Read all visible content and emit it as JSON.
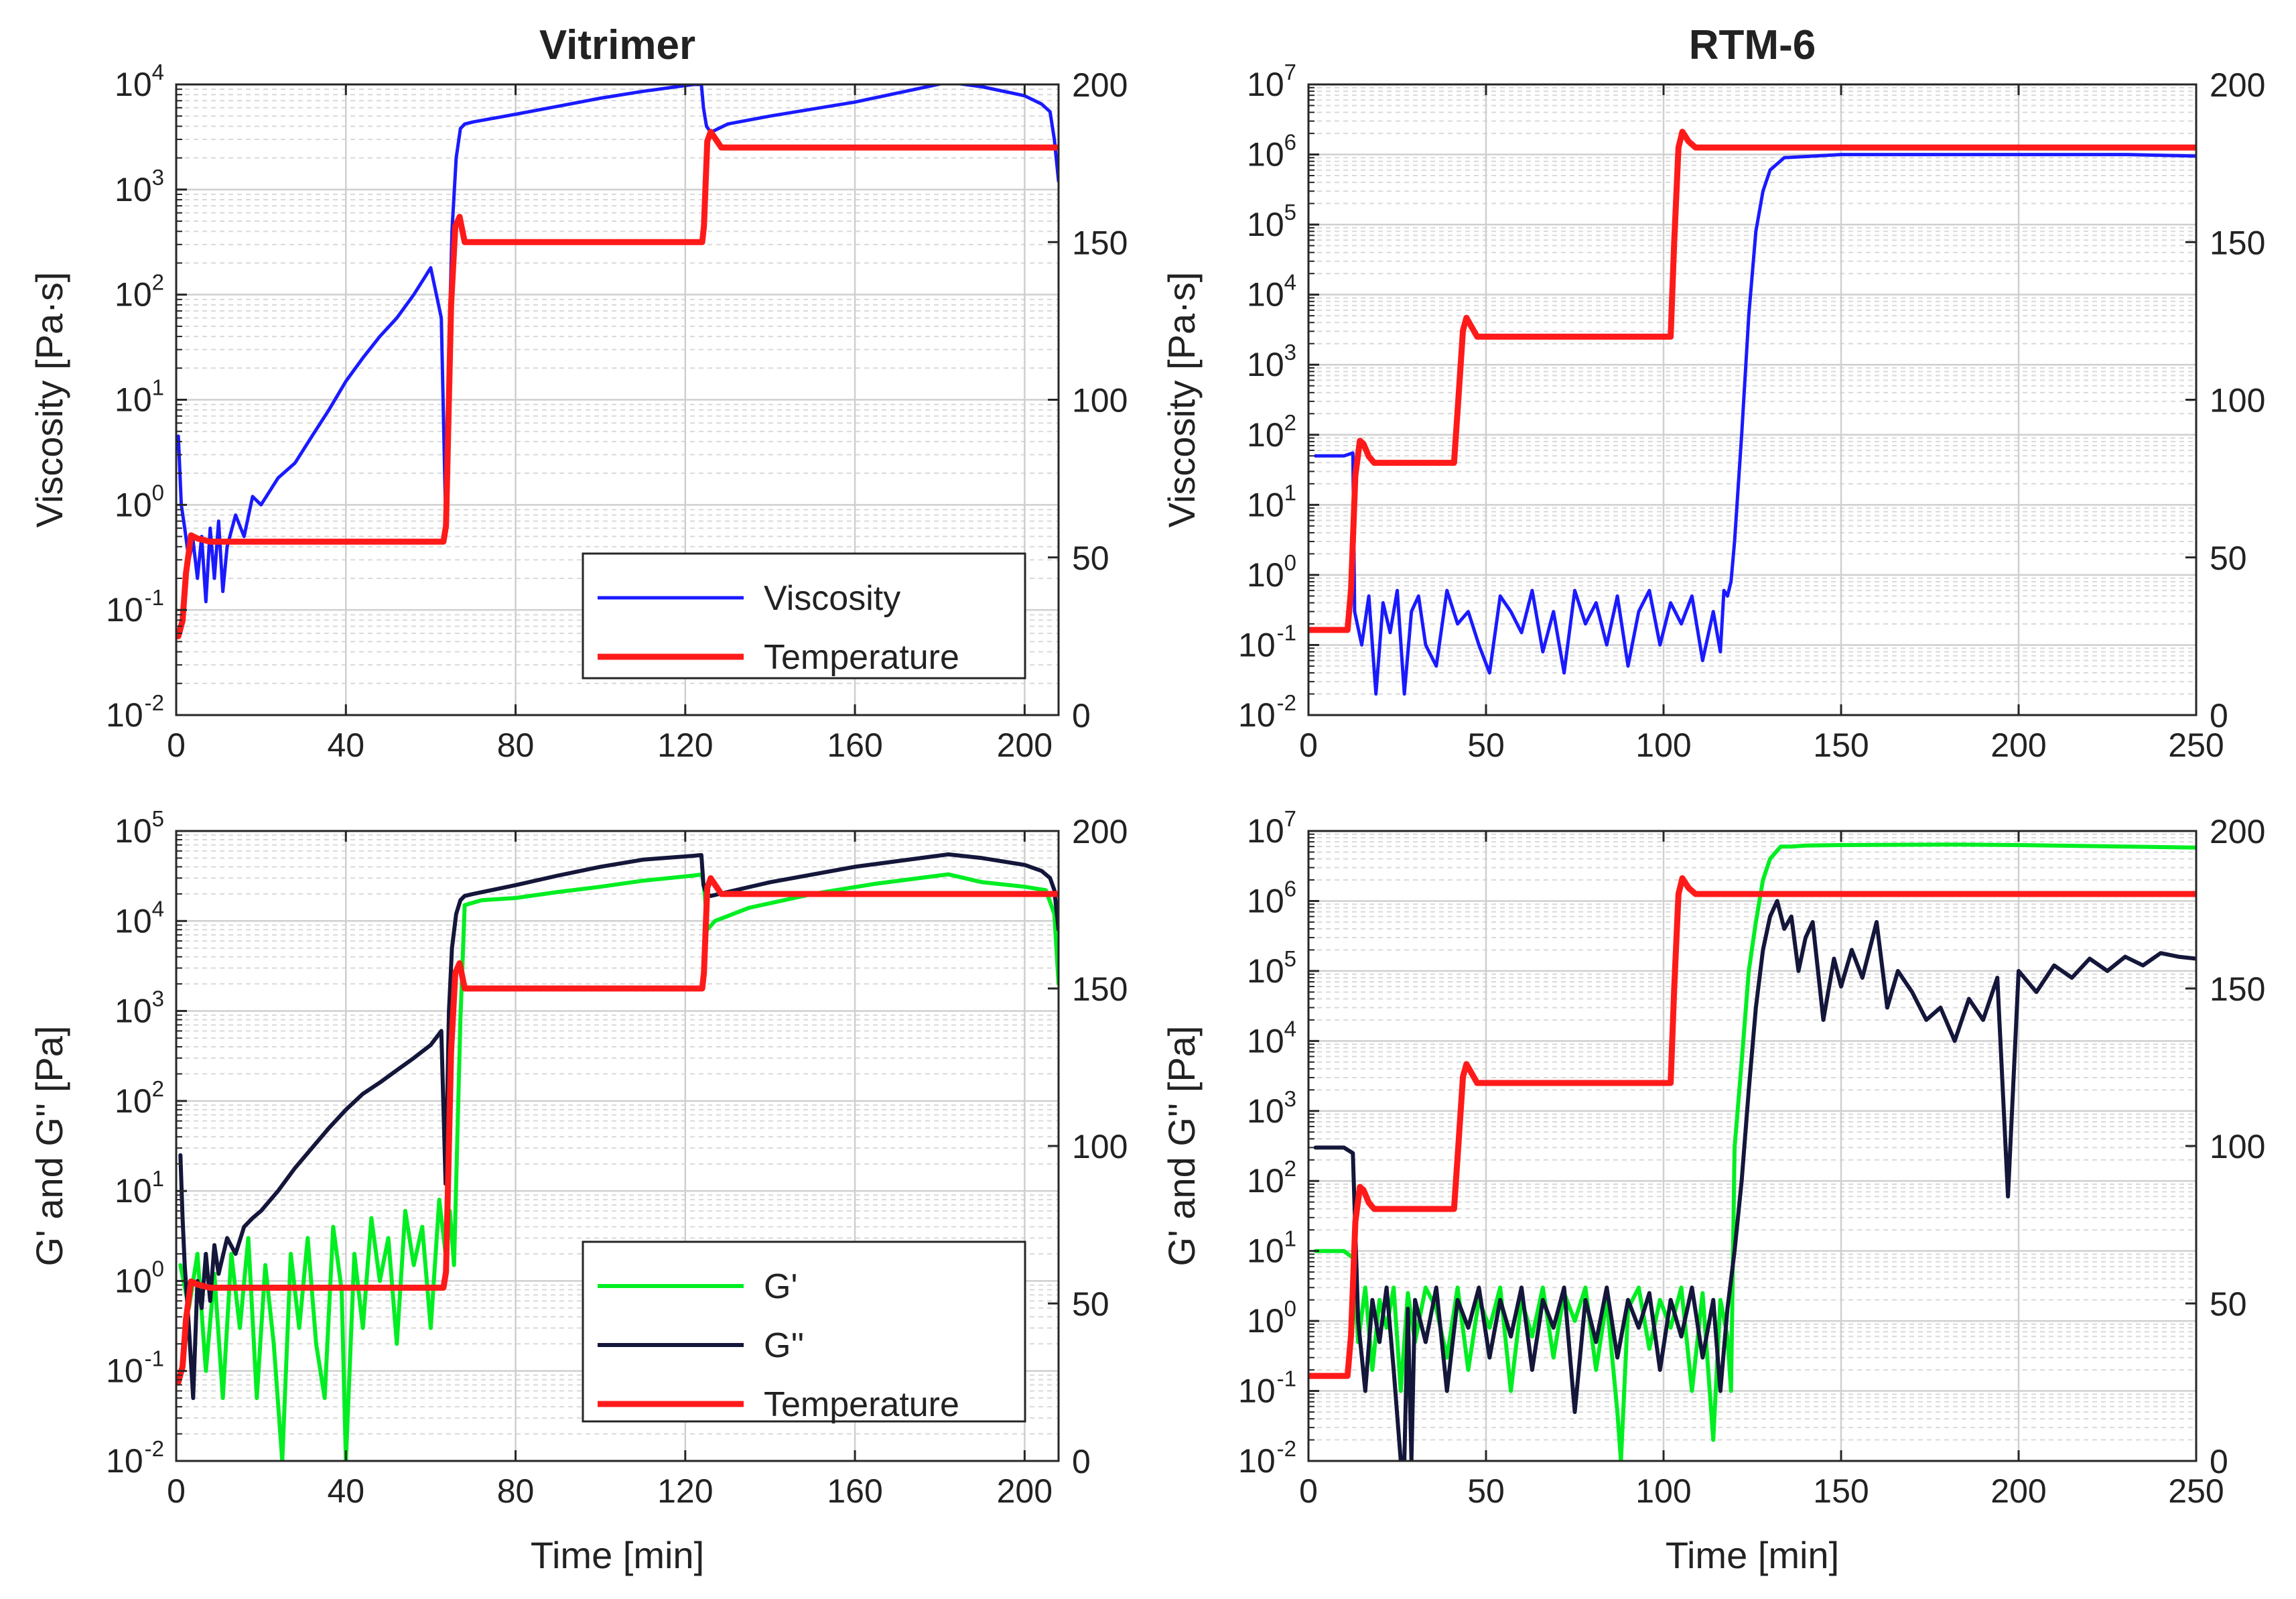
{
  "colors": {
    "viscosity": "#1a1aff",
    "temperature": "#ff1a1a",
    "g_prime": "#00ee22",
    "g_double_prime": "#14163a",
    "grid": "#d9d9d9",
    "axis": "#262626"
  },
  "chart_data": [
    {
      "id": "vit_visc",
      "type": "line",
      "title": "Vitrimer",
      "xlabel": "",
      "ylabel": "Viscosity [Pa·s]",
      "xlim": [
        0,
        208
      ],
      "xticks": [
        0,
        40,
        80,
        120,
        160,
        200
      ],
      "y_scale": "log",
      "ylim_exp": [
        -2,
        4
      ],
      "y2lim": [
        0,
        200
      ],
      "y2ticks": [
        0,
        50,
        100,
        150,
        200
      ],
      "legend": {
        "position": "bottom-right",
        "entries": [
          "Viscosity",
          "Temperature"
        ]
      },
      "series": [
        {
          "name": "Viscosity",
          "key": "viscosity",
          "axis": "left-log",
          "width": 5,
          "x": [
            0.5,
            1.2,
            2,
            3,
            4,
            5,
            6,
            7,
            8,
            9,
            10,
            11,
            12,
            14,
            16,
            18,
            20,
            24,
            28,
            32,
            36,
            40,
            44,
            48,
            52,
            56,
            60,
            62.5,
            63.5,
            64.3,
            65,
            66,
            67,
            68,
            70,
            80,
            90,
            100,
            110,
            122,
            123.8,
            124.3,
            125,
            126,
            130,
            140,
            160,
            182,
            190,
            200,
            204,
            206,
            207,
            208
          ],
          "y": [
            4.5,
            1.0,
            0.6,
            0.3,
            0.45,
            0.2,
            0.5,
            0.12,
            0.6,
            0.2,
            0.7,
            0.15,
            0.4,
            0.8,
            0.5,
            1.2,
            1.0,
            1.8,
            2.5,
            4.5,
            8,
            15,
            25,
            40,
            60,
            100,
            180,
            60,
            0.8,
            30,
            400,
            2000,
            3800,
            4200,
            4400,
            5200,
            6200,
            7400,
            8600,
            10000,
            10000,
            6000,
            4000,
            3500,
            4200,
            5000,
            6800,
            10500,
            9500,
            7800,
            6500,
            5500,
            3000,
            1200
          ]
        },
        {
          "name": "Temperature",
          "key": "temperature",
          "axis": "right",
          "width": 9,
          "x": [
            0.5,
            1.5,
            2.3,
            3.5,
            5,
            8,
            12,
            63,
            63.6,
            64.8,
            65.8,
            66.8,
            68,
            72,
            124,
            124.4,
            125.2,
            126,
            127,
            128.5,
            132,
            208
          ],
          "y": [
            25,
            30,
            45,
            57,
            56,
            55,
            55,
            55,
            60,
            130,
            155,
            158,
            150,
            150,
            150,
            155,
            182,
            185,
            183,
            180,
            180,
            180
          ]
        }
      ]
    },
    {
      "id": "rtm_visc",
      "type": "line",
      "title": "RTM-6",
      "xlabel": "",
      "ylabel": "Viscosity [Pa·s]",
      "xlim": [
        0,
        250
      ],
      "xticks": [
        0,
        50,
        100,
        150,
        200,
        250
      ],
      "y_scale": "log",
      "ylim_exp": [
        -2,
        7
      ],
      "y2lim": [
        0,
        200
      ],
      "y2ticks": [
        0,
        50,
        100,
        150,
        200
      ],
      "series": [
        {
          "name": "Viscosity",
          "key": "viscosity",
          "axis": "left-log",
          "width": 5,
          "x": [
            2,
            10,
            12.5,
            13,
            15,
            17,
            19,
            21,
            23,
            25,
            27,
            29,
            31,
            33,
            36,
            39,
            42,
            45,
            48,
            51,
            54,
            57,
            60,
            63,
            66,
            69,
            72,
            75,
            78,
            81,
            84,
            87,
            90,
            93,
            96,
            99,
            102,
            105,
            108,
            111,
            114,
            116,
            117,
            118,
            119,
            120,
            122,
            124,
            126,
            128,
            130,
            134,
            150,
            200,
            230,
            250
          ],
          "y": [
            50,
            50,
            55,
            0.3,
            0.1,
            0.5,
            0.02,
            0.4,
            0.15,
            0.6,
            0.02,
            0.3,
            0.5,
            0.1,
            0.05,
            0.6,
            0.2,
            0.3,
            0.1,
            0.04,
            0.5,
            0.3,
            0.15,
            0.6,
            0.08,
            0.3,
            0.04,
            0.6,
            0.2,
            0.4,
            0.1,
            0.5,
            0.05,
            0.3,
            0.6,
            0.1,
            0.4,
            0.2,
            0.5,
            0.06,
            0.3,
            0.08,
            0.6,
            0.5,
            0.8,
            3,
            100,
            5000,
            80000,
            300000,
            600000,
            900000,
            1000000,
            1000000,
            1000000,
            950000
          ]
        },
        {
          "name": "Temperature",
          "key": "temperature",
          "axis": "right",
          "width": 9,
          "x": [
            0,
            11,
            12,
            13.2,
            14.5,
            15.5,
            17,
            18.5,
            20,
            41,
            42.2,
            43.5,
            44.5,
            46,
            47.5,
            50,
            102,
            103,
            104.2,
            105.3,
            107,
            109,
            112,
            250
          ],
          "y": [
            27,
            27,
            40,
            76,
            87,
            86,
            82,
            80,
            80,
            80,
            100,
            122,
            126,
            123,
            120,
            120,
            120,
            150,
            180,
            185,
            182,
            180,
            180,
            180
          ]
        }
      ]
    },
    {
      "id": "vit_mod",
      "type": "line",
      "title": "",
      "xlabel": "Time [min]",
      "ylabel": "G' and G'' [Pa]",
      "xlim": [
        0,
        208
      ],
      "xticks": [
        0,
        40,
        80,
        120,
        160,
        200
      ],
      "y_scale": "log",
      "ylim_exp": [
        -2,
        5
      ],
      "y2lim": [
        0,
        200
      ],
      "y2ticks": [
        0,
        50,
        100,
        150,
        200
      ],
      "legend": {
        "position": "bottom-right",
        "entries": [
          "G'",
          "G''",
          "Temperature"
        ]
      },
      "series": [
        {
          "name": "G'",
          "key": "g_prime",
          "axis": "left-log",
          "width": 6,
          "x": [
            1,
            3,
            5,
            7,
            9,
            11,
            13,
            15,
            17,
            19,
            21,
            23,
            25,
            27,
            29,
            31,
            33,
            35,
            37,
            39,
            40,
            42,
            44,
            46,
            48,
            50,
            52,
            54,
            56,
            58,
            60,
            62,
            63.5,
            64.5,
            65.5,
            67,
            68,
            72,
            80,
            90,
            100,
            110,
            122,
            124,
            124.6,
            125.2,
            127,
            135,
            150,
            165,
            182,
            190,
            200,
            205,
            207,
            208
          ],
          "y": [
            1.5,
            0.5,
            2.0,
            0.1,
            1.2,
            0.05,
            2.0,
            0.3,
            3.0,
            0.05,
            1.5,
            0.2,
            0.01,
            2.0,
            0.3,
            3.0,
            0.2,
            0.05,
            4.0,
            0.8,
            0.01,
            2.0,
            0.3,
            5.0,
            1.0,
            3.0,
            0.2,
            6.0,
            1.5,
            4.0,
            0.3,
            8.0,
            2.0,
            6.0,
            1.5,
            800,
            15000,
            17000,
            18000,
            21000,
            24000,
            28000,
            32000,
            33000,
            20000,
            8000,
            10000,
            14000,
            20000,
            26000,
            33000,
            27000,
            24000,
            22000,
            12000,
            2000
          ]
        },
        {
          "name": "G''",
          "key": "g_double_prime",
          "axis": "left-log",
          "width": 6,
          "x": [
            1,
            1.5,
            2,
            3,
            4,
            5,
            6,
            7,
            8,
            9,
            10,
            12,
            14,
            16,
            18,
            20,
            24,
            28,
            32,
            36,
            40,
            44,
            48,
            52,
            56,
            60,
            62.5,
            63.5,
            64.3,
            65,
            66,
            67,
            68,
            70,
            80,
            90,
            100,
            110,
            122,
            123.8,
            124.3,
            125,
            126,
            130,
            140,
            160,
            182,
            190,
            200,
            204,
            206,
            207,
            208
          ],
          "y": [
            25,
            5,
            1.5,
            0.3,
            0.05,
            1.0,
            0.5,
            2.0,
            0.6,
            2.5,
            1.2,
            3.0,
            2.0,
            4.0,
            5.0,
            6.0,
            10,
            18,
            30,
            50,
            80,
            120,
            160,
            220,
            300,
            420,
            600,
            12,
            1000,
            5000,
            12000,
            17000,
            19000,
            20000,
            25000,
            32000,
            40000,
            48000,
            53000,
            54000,
            25000,
            20000,
            19000,
            21000,
            27000,
            40000,
            55000,
            50000,
            42000,
            36000,
            30000,
            22000,
            8000
          ]
        },
        {
          "name": "Temperature",
          "key": "temperature",
          "axis": "right",
          "width": 9,
          "x": [
            0.5,
            1.5,
            2.3,
            3.5,
            5,
            8,
            12,
            63,
            63.6,
            64.8,
            65.8,
            66.8,
            68,
            72,
            124,
            124.4,
            125.2,
            126,
            127,
            128.5,
            132,
            208
          ],
          "y": [
            25,
            30,
            45,
            57,
            56,
            55,
            55,
            55,
            60,
            130,
            155,
            158,
            150,
            150,
            150,
            155,
            182,
            185,
            183,
            180,
            180,
            180
          ]
        }
      ]
    },
    {
      "id": "rtm_mod",
      "type": "line",
      "title": "",
      "xlabel": "Time [min]",
      "ylabel": "G' and G'' [Pa]",
      "xlim": [
        0,
        250
      ],
      "xticks": [
        0,
        50,
        100,
        150,
        200,
        250
      ],
      "y_scale": "log",
      "ylim_exp": [
        -2,
        7
      ],
      "y2lim": [
        0,
        200
      ],
      "y2ticks": [
        0,
        50,
        100,
        150,
        200
      ],
      "series": [
        {
          "name": "G'",
          "key": "g_prime",
          "axis": "left-log",
          "width": 6,
          "x": [
            2,
            10,
            12.5,
            14,
            16,
            18,
            20,
            22,
            24,
            26,
            28,
            30,
            33,
            36,
            39,
            42,
            45,
            48,
            51,
            54,
            57,
            60,
            63,
            66,
            69,
            72,
            75,
            78,
            81,
            84,
            87,
            88,
            90,
            93,
            96,
            99,
            102,
            105,
            108,
            111,
            114,
            116,
            118,
            119,
            120,
            122,
            124,
            126,
            128,
            130,
            133,
            136,
            140,
            150,
            180,
            200,
            230,
            250
          ],
          "y": [
            10,
            10,
            8,
            0.5,
            3.0,
            0.2,
            2.0,
            0.8,
            3.0,
            0.1,
            2.5,
            0.5,
            3.0,
            1.5,
            0.3,
            3.0,
            0.2,
            2.0,
            0.8,
            3.0,
            0.1,
            2.0,
            0.6,
            3.0,
            0.3,
            2.5,
            1.0,
            3.0,
            0.2,
            2.0,
            0.05,
            0.01,
            1.5,
            3.0,
            0.4,
            2.0,
            0.8,
            3.0,
            0.1,
            2.5,
            0.02,
            2.0,
            0.6,
            0.1,
            300,
            5000,
            100000,
            500000,
            2000000,
            4000000,
            6000000,
            6000000,
            6200000,
            6300000,
            6400000,
            6300000,
            6000000,
            5800000
          ]
        },
        {
          "name": "G''",
          "key": "g_double_prime",
          "axis": "left-log",
          "width": 6,
          "x": [
            2,
            10,
            12.5,
            14,
            16,
            18,
            20,
            22,
            24,
            26,
            27,
            28,
            29,
            30,
            33,
            36,
            39,
            42,
            45,
            48,
            51,
            54,
            57,
            60,
            63,
            66,
            69,
            72,
            75,
            78,
            81,
            84,
            87,
            90,
            93,
            96,
            99,
            102,
            105,
            108,
            111,
            114,
            116,
            118,
            120,
            122,
            124,
            126,
            128,
            130,
            132,
            134,
            136,
            138,
            140,
            142,
            145,
            148,
            150,
            153,
            156,
            160,
            163,
            166,
            170,
            174,
            178,
            182,
            186,
            190,
            194,
            197,
            200,
            205,
            210,
            215,
            220,
            225,
            230,
            235,
            240,
            245,
            250
          ],
          "y": [
            300,
            300,
            250,
            1.0,
            0.1,
            2.0,
            0.5,
            3.0,
            0.2,
            0.01,
            0.01,
            1.5,
            0.01,
            2.0,
            0.5,
            3.0,
            0.1,
            2.0,
            0.8,
            3.0,
            0.3,
            2.0,
            0.6,
            3.0,
            0.2,
            2.0,
            0.8,
            3.0,
            0.05,
            2.0,
            0.5,
            3.0,
            0.3,
            2.0,
            0.8,
            2.5,
            0.2,
            2.0,
            0.6,
            3.0,
            0.3,
            2.0,
            0.1,
            1.5,
            10,
            100,
            2000,
            30000,
            200000,
            600000,
            1000000,
            400000,
            600000,
            100000,
            300000,
            500000,
            20000,
            150000,
            60000,
            200000,
            80000,
            500000,
            30000,
            100000,
            50000,
            20000,
            30000,
            10000,
            40000,
            20000,
            80000,
            60,
            100000,
            50000,
            120000,
            80000,
            150000,
            100000,
            160000,
            120000,
            180000,
            160000,
            150000
          ]
        },
        {
          "name": "Temperature",
          "key": "temperature",
          "axis": "right",
          "width": 9,
          "x": [
            0,
            11,
            12,
            13.2,
            14.5,
            15.5,
            17,
            18.5,
            20,
            41,
            42.2,
            43.5,
            44.5,
            46,
            47.5,
            50,
            102,
            103,
            104.2,
            105.3,
            107,
            109,
            112,
            250
          ],
          "y": [
            27,
            27,
            40,
            76,
            87,
            86,
            82,
            80,
            80,
            80,
            100,
            122,
            126,
            123,
            120,
            120,
            120,
            150,
            180,
            185,
            182,
            180,
            180,
            180
          ]
        }
      ]
    }
  ]
}
